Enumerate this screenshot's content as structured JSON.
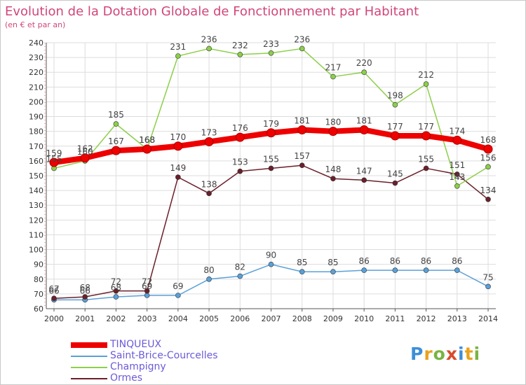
{
  "header": {
    "title": "Evolution de la Dotation Globale de Fonctionnement par Habitant",
    "subtitle": "(en € et par an)"
  },
  "logo": {
    "text": "Proxiti"
  },
  "colors": {
    "tinqueux": "#ee0000",
    "saint_brice": "#5aa0d8",
    "champigny": "#8ccf4a",
    "ormes": "#6b1f2a",
    "title": "#d1467a",
    "legend_text": "#6b5bd8",
    "grid": "#dddddd"
  },
  "chart_data": {
    "type": "line",
    "title": "Evolution de la Dotation Globale de Fonctionnement par Habitant",
    "subtitle": "(en € et par an)",
    "xlabel": "",
    "ylabel": "",
    "x": [
      "2000",
      "2001",
      "2002",
      "2003",
      "2004",
      "2005",
      "2006",
      "2007",
      "2008",
      "2009",
      "2010",
      "2011",
      "2012",
      "2013",
      "2014"
    ],
    "ylim": [
      60,
      240
    ],
    "yticks": [
      60,
      70,
      80,
      90,
      100,
      110,
      120,
      130,
      140,
      150,
      160,
      170,
      180,
      190,
      200,
      210,
      220,
      230,
      240
    ],
    "grid": true,
    "legend_position": "bottom-left",
    "series": [
      {
        "name": "TINQUEUX",
        "color": "#ee0000",
        "values": [
          159,
          162,
          167,
          168,
          170,
          173,
          176,
          179,
          181,
          180,
          181,
          177,
          177,
          174,
          168
        ]
      },
      {
        "name": "Saint-Brice-Courcelles",
        "color": "#5aa0d8",
        "values": [
          66,
          66,
          68,
          69,
          69,
          80,
          82,
          90,
          85,
          85,
          86,
          86,
          86,
          86,
          75
        ]
      },
      {
        "name": "Champigny",
        "color": "#8ccf4a",
        "values": [
          155,
          160,
          185,
          168,
          231,
          236,
          232,
          233,
          236,
          217,
          220,
          198,
          212,
          143,
          156
        ]
      },
      {
        "name": "Ormes",
        "color": "#6b1f2a",
        "values": [
          67,
          68,
          72,
          72,
          149,
          138,
          153,
          155,
          157,
          148,
          147,
          145,
          155,
          151,
          134
        ]
      }
    ]
  }
}
